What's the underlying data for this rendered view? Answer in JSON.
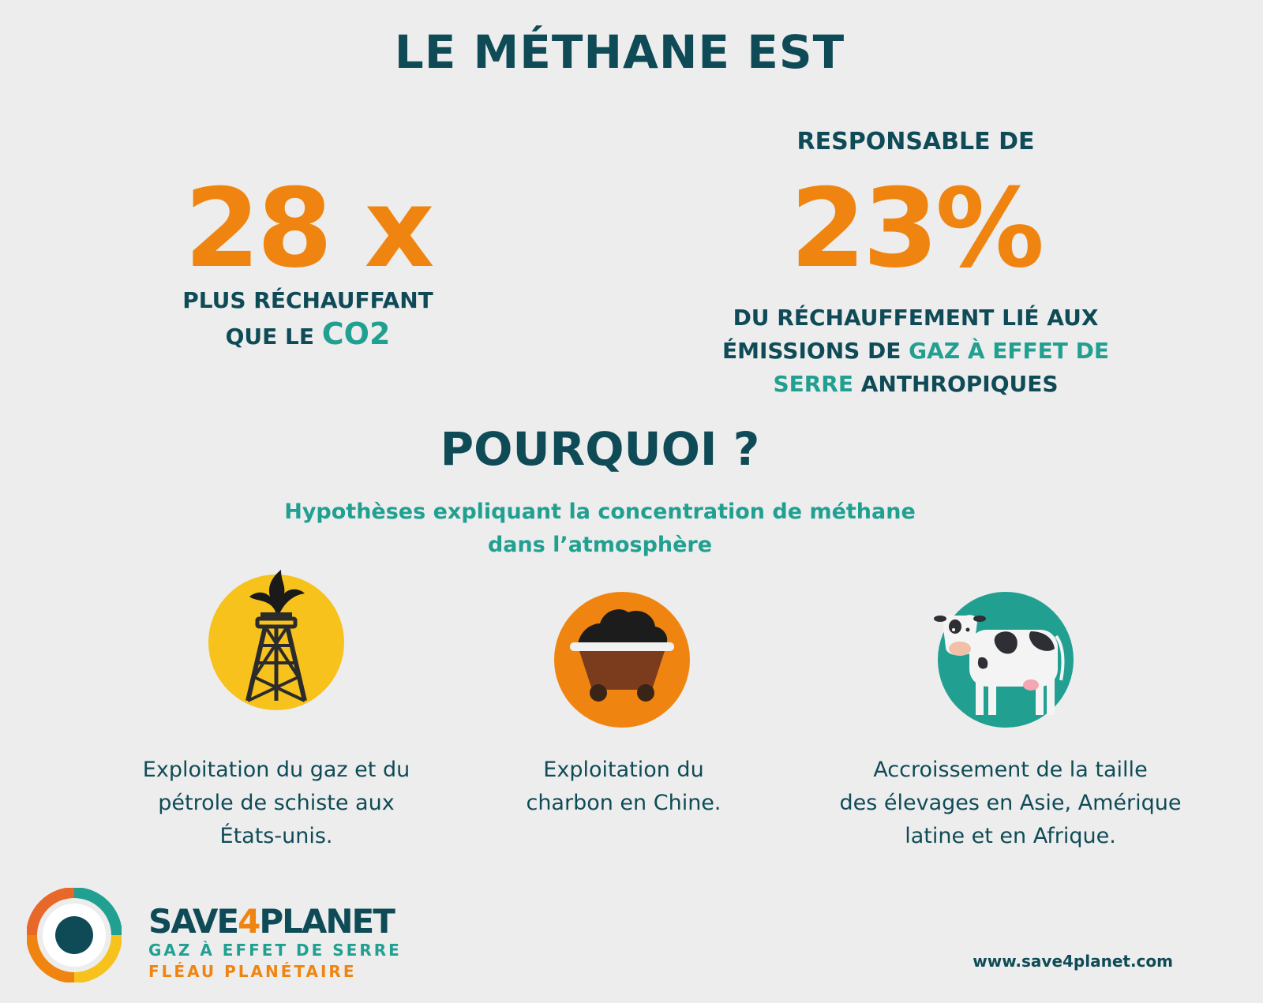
{
  "title": "LE MÉTHANE EST",
  "stat_left": {
    "value": "28 x",
    "caption_line1": "PLUS RÉCHAUFFANT",
    "caption_line2_a": "QUE LE ",
    "caption_line2_b": "CO2"
  },
  "stat_right": {
    "pre": "RESPONSABLE DE",
    "value": "23%",
    "caption_line1": "DU RÉCHAUFFEMENT LIÉ AUX",
    "caption_line2_a": "ÉMISSIONS DE ",
    "caption_line2_b": "GAZ À EFFET DE",
    "caption_line3_a": "SERRE",
    "caption_line3_b": " ANTHROPIQUES"
  },
  "why": {
    "title": "POURQUOI ?",
    "subtitle_line1": "Hypothèses expliquant la concentration de méthane",
    "subtitle_line2": "dans l’atmosphère"
  },
  "hypotheses": [
    {
      "icon": "oil-derrick-icon",
      "line1": "Exploitation du gaz et du",
      "line2": "pétrole de schiste aux",
      "line3": "États-unis."
    },
    {
      "icon": "coal-cart-icon",
      "line1": "Exploitation du",
      "line2": "charbon en Chine.",
      "line3": ""
    },
    {
      "icon": "cow-icon",
      "line1": "Accroissement de la taille",
      "line2": "des élevages en Asie, Amérique",
      "line3": "latine et en Afrique."
    }
  ],
  "footer": {
    "brand_a": "SAVE",
    "brand_b": "4",
    "brand_c": "PLANET",
    "tagline1": "GAZ À EFFET DE SERRE",
    "tagline2": "FLÉAU PLANÉTAIRE",
    "website": "www.save4planet.com"
  },
  "colors": {
    "dark_teal": "#0f4b57",
    "teal": "#21a091",
    "orange": "#ef8510",
    "yellow": "#f6c21b",
    "background": "#ededed"
  }
}
